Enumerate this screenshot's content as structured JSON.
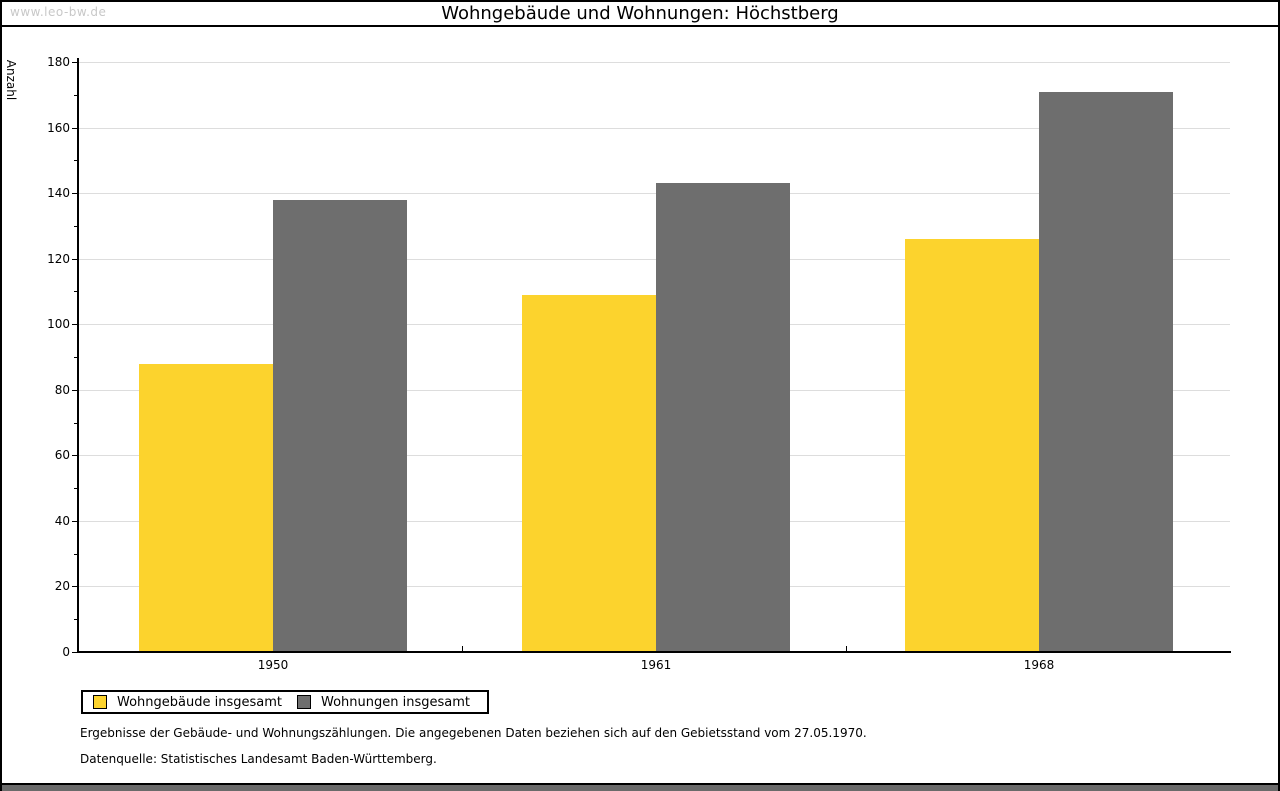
{
  "watermark": "www.leo-bw.de",
  "chart_data": {
    "type": "bar",
    "title": "Wohngebäude und Wohnungen: Höchstberg",
    "ylabel": "Anzahl",
    "xlabel": "",
    "ylim": [
      0,
      180
    ],
    "ytick_step": 20,
    "yminor_step": 10,
    "grid": true,
    "legend_position": "bottom-left",
    "categories": [
      "1950",
      "1961",
      "1968"
    ],
    "series": [
      {
        "name": "Wohngebäude insgesamt",
        "color": "#FCD32D",
        "values": [
          88,
          109,
          126
        ]
      },
      {
        "name": "Wohnungen insgesamt",
        "color": "#6E6E6E",
        "values": [
          138,
          143,
          171
        ]
      }
    ]
  },
  "footer": {
    "line1": "Ergebnisse der Gebäude- und Wohnungszählungen. Die angegebenen Daten beziehen sich auf den Gebietsstand vom 27.05.1970.",
    "line2": "Datenquelle: Statistisches Landesamt Baden-Württemberg."
  },
  "colors": {
    "grid": "#DDDDDD",
    "axis": "#000000",
    "watermark": "#C8C8C8",
    "bottom_bar": "#6A6A6A",
    "background": "#FFFFFF"
  }
}
